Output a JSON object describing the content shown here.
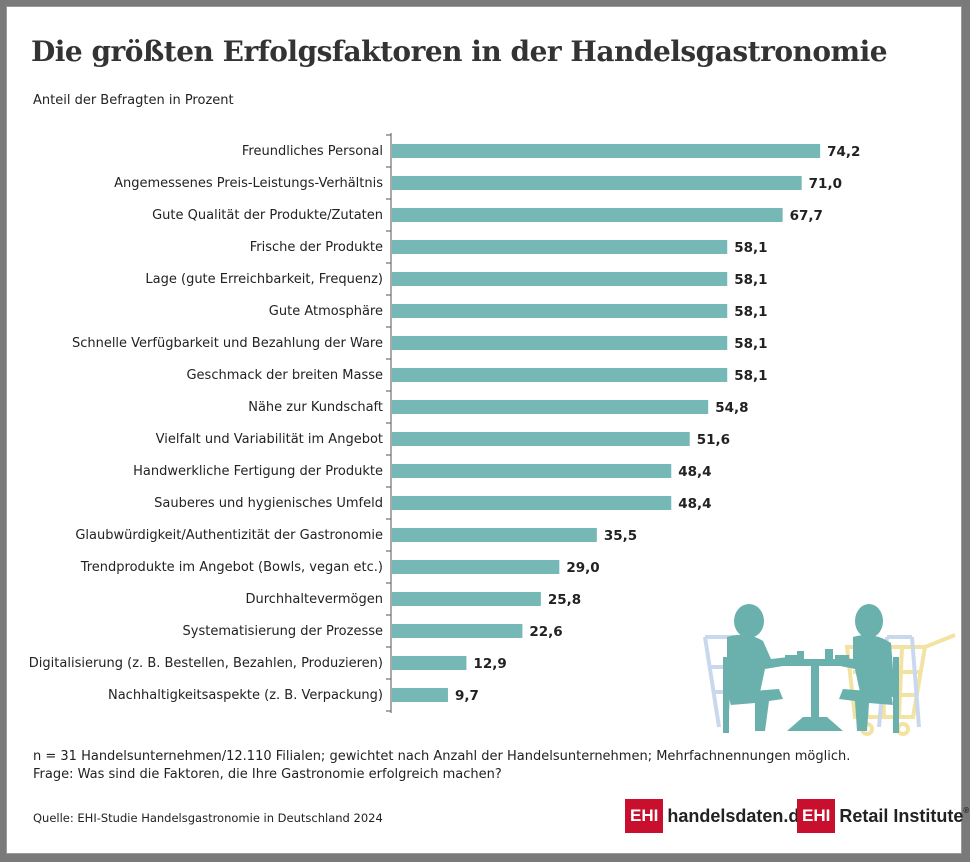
{
  "title": "Die größten Erfolgsfaktoren in der Handelsgastronomie",
  "subtitle": "Anteil der Befragten in Prozent",
  "footnote_1": "n = 31 Handelsunternehmen/12.110 Filialen; gewichtet nach Anzahl der Handelsunternehmen; Mehrfachnennungen möglich.",
  "footnote_2": "Frage: Was sind die Faktoren, die Ihre Gastronomie erfolgreich machen?",
  "source": "Quelle: EHI-Studie Handelsgastronomie in Deutschland 2024",
  "logos": {
    "logo1_box": "EHI",
    "logo1_text": "handelsdaten.de",
    "logo2_box": "EHI",
    "logo2_text": "Retail Institute",
    "logo2_mark": "®"
  },
  "colors": {
    "bar": "#76b8b6",
    "brand_red": "#c8102e",
    "illustration_teal": "#6ab0ad",
    "illustration_blue": "#c9d8ec",
    "illustration_yellow": "#f3e3a2"
  },
  "chart_data": {
    "type": "bar",
    "orientation": "horizontal",
    "categories": [
      "Freundliches Personal",
      "Angemessenes Preis-Leistungs-Verhältnis",
      "Gute Qualität der Produkte/Zutaten",
      "Frische der Produkte",
      "Lage (gute Erreichbarkeit, Frequenz)",
      "Gute Atmosphäre",
      "Schnelle Verfügbarkeit und Bezahlung der Ware",
      "Geschmack der breiten Masse",
      "Nähe zur Kundschaft",
      "Vielfalt und Variabilität im Angebot",
      "Handwerkliche Fertigung der Produkte",
      "Sauberes und hygienisches Umfeld",
      "Glaubwürdigkeit/Authentizität der Gastronomie",
      "Trendprodukte im Angebot (Bowls, vegan etc.)",
      "Durchhaltevermögen",
      "Systematisierung der Prozesse",
      "Digitalisierung (z. B. Bestellen, Bezahlen, Produzieren)",
      "Nachhaltigkeitsaspekte (z. B. Verpackung)"
    ],
    "values": [
      74.2,
      71.0,
      67.7,
      58.1,
      58.1,
      58.1,
      58.1,
      58.1,
      54.8,
      51.6,
      48.4,
      48.4,
      35.5,
      29.0,
      25.8,
      22.6,
      12.9,
      9.7
    ],
    "value_labels": [
      "74,2",
      "71,0",
      "67,7",
      "58,1",
      "58,1",
      "58,1",
      "58,1",
      "58,1",
      "54,8",
      "51,6",
      "48,4",
      "48,4",
      "35,5",
      "29,0",
      "25,8",
      "22,6",
      "12,9",
      "9,7"
    ],
    "xlim": [
      0,
      100
    ],
    "grid": false,
    "legend": "none"
  }
}
